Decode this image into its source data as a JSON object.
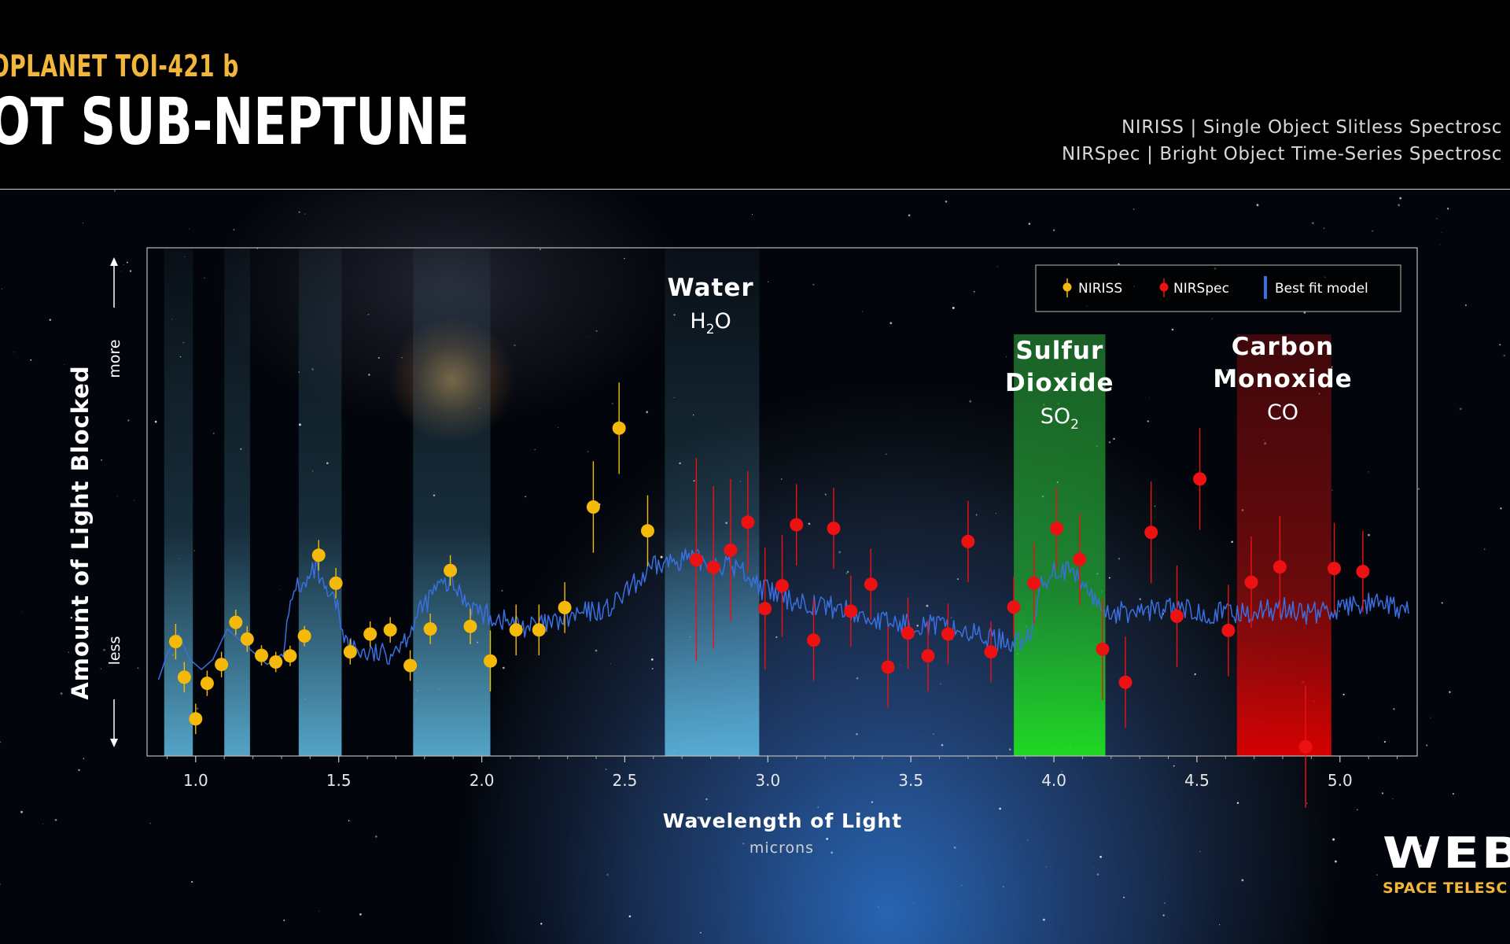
{
  "header": {
    "kicker": "OPLANET TOI-421 b",
    "title": "OT SUB-NEPTUNE",
    "instruments": [
      "NIRISS | Single Object Slitless Spectrosc",
      "NIRSpec | Bright Object Time-Series Spectrosc"
    ]
  },
  "logo": {
    "word": "WEB",
    "sub": "SPACE TELESC"
  },
  "chart_data": {
    "type": "scatter",
    "xlabel": "Wavelength of Light",
    "xunit": "microns",
    "ylabel": "Amount of Light Blocked",
    "ylabel_more": "more",
    "ylabel_less": "less",
    "xlim": [
      0.83,
      5.27
    ],
    "ylim": [
      0,
      1
    ],
    "x_ticks": [
      1.0,
      1.5,
      2.0,
      2.5,
      3.0,
      3.5,
      4.0,
      4.5,
      5.0
    ],
    "x_tick_labels": [
      "1.0",
      "1.5",
      "2.0",
      "2.5",
      "3.0",
      "3.5",
      "4.0",
      "4.5",
      "5.0"
    ],
    "grid": false,
    "legend": {
      "placement": "top-right",
      "entries": [
        {
          "label": "NIRISS",
          "color": "#f5b90a",
          "marker": "dot"
        },
        {
          "label": "NIRSpec",
          "color": "#ee1111",
          "marker": "dot"
        },
        {
          "label": "Best fit model",
          "color": "#3a6fe0",
          "marker": "line"
        }
      ]
    },
    "bands": [
      {
        "x0": 0.89,
        "x1": 0.99,
        "kind": "water"
      },
      {
        "x0": 1.1,
        "x1": 1.19,
        "kind": "water"
      },
      {
        "x0": 1.36,
        "x1": 1.51,
        "kind": "water"
      },
      {
        "x0": 1.76,
        "x1": 2.03,
        "kind": "water"
      },
      {
        "x0": 2.64,
        "x1": 2.97,
        "kind": "water"
      },
      {
        "x0": 3.86,
        "x1": 4.18,
        "kind": "sulfur"
      },
      {
        "x0": 4.64,
        "x1": 4.97,
        "kind": "carbon"
      }
    ],
    "molecule_labels": [
      {
        "x": 2.8,
        "name_lines": [
          "Water"
        ],
        "formula": "H",
        "formula_sub": "2",
        "formula_tail": "O"
      },
      {
        "x": 4.02,
        "name_lines": [
          "Sulfur",
          "Dioxide"
        ],
        "formula": "SO",
        "formula_sub": "2",
        "formula_tail": ""
      },
      {
        "x": 4.8,
        "name_lines": [
          "Carbon",
          "Monoxide"
        ],
        "formula": "CO",
        "formula_sub": "",
        "formula_tail": ""
      }
    ],
    "series": [
      {
        "name": "NIRISS",
        "color": "#f5b90a",
        "points": [
          {
            "x": 0.93,
            "y": 0.225,
            "err": 0.035
          },
          {
            "x": 0.96,
            "y": 0.155,
            "err": 0.03
          },
          {
            "x": 1.0,
            "y": 0.073,
            "err": 0.03
          },
          {
            "x": 1.04,
            "y": 0.143,
            "err": 0.025
          },
          {
            "x": 1.09,
            "y": 0.18,
            "err": 0.025
          },
          {
            "x": 1.14,
            "y": 0.263,
            "err": 0.025
          },
          {
            "x": 1.18,
            "y": 0.23,
            "err": 0.025
          },
          {
            "x": 1.23,
            "y": 0.198,
            "err": 0.02
          },
          {
            "x": 1.28,
            "y": 0.185,
            "err": 0.02
          },
          {
            "x": 1.33,
            "y": 0.197,
            "err": 0.02
          },
          {
            "x": 1.38,
            "y": 0.236,
            "err": 0.02
          },
          {
            "x": 1.43,
            "y": 0.395,
            "err": 0.03
          },
          {
            "x": 1.49,
            "y": 0.34,
            "err": 0.03
          },
          {
            "x": 1.54,
            "y": 0.205,
            "err": 0.025
          },
          {
            "x": 1.61,
            "y": 0.24,
            "err": 0.025
          },
          {
            "x": 1.68,
            "y": 0.248,
            "err": 0.025
          },
          {
            "x": 1.75,
            "y": 0.178,
            "err": 0.03
          },
          {
            "x": 1.82,
            "y": 0.25,
            "err": 0.03
          },
          {
            "x": 1.89,
            "y": 0.365,
            "err": 0.03
          },
          {
            "x": 1.96,
            "y": 0.255,
            "err": 0.035
          },
          {
            "x": 2.03,
            "y": 0.187,
            "err": 0.06
          },
          {
            "x": 2.12,
            "y": 0.248,
            "err": 0.05
          },
          {
            "x": 2.2,
            "y": 0.248,
            "err": 0.05
          },
          {
            "x": 2.29,
            "y": 0.292,
            "err": 0.05
          },
          {
            "x": 2.39,
            "y": 0.49,
            "err": 0.09
          },
          {
            "x": 2.48,
            "y": 0.645,
            "err": 0.09
          },
          {
            "x": 2.58,
            "y": 0.443,
            "err": 0.07
          }
        ]
      },
      {
        "name": "NIRSpec",
        "color": "#ee1111",
        "points": [
          {
            "x": 2.75,
            "y": 0.386,
            "err": 0.2
          },
          {
            "x": 2.81,
            "y": 0.371,
            "err": 0.16
          },
          {
            "x": 2.87,
            "y": 0.405,
            "err": 0.14
          },
          {
            "x": 2.93,
            "y": 0.46,
            "err": 0.1
          },
          {
            "x": 2.99,
            "y": 0.29,
            "err": 0.12
          },
          {
            "x": 3.05,
            "y": 0.335,
            "err": 0.1
          },
          {
            "x": 3.1,
            "y": 0.455,
            "err": 0.08
          },
          {
            "x": 3.16,
            "y": 0.228,
            "err": 0.08
          },
          {
            "x": 3.23,
            "y": 0.448,
            "err": 0.08
          },
          {
            "x": 3.29,
            "y": 0.285,
            "err": 0.07
          },
          {
            "x": 3.36,
            "y": 0.338,
            "err": 0.07
          },
          {
            "x": 3.42,
            "y": 0.175,
            "err": 0.08
          },
          {
            "x": 3.49,
            "y": 0.242,
            "err": 0.07
          },
          {
            "x": 3.56,
            "y": 0.197,
            "err": 0.07
          },
          {
            "x": 3.63,
            "y": 0.24,
            "err": 0.06
          },
          {
            "x": 3.7,
            "y": 0.422,
            "err": 0.08
          },
          {
            "x": 3.78,
            "y": 0.205,
            "err": 0.06
          },
          {
            "x": 3.86,
            "y": 0.293,
            "err": 0.06
          },
          {
            "x": 3.93,
            "y": 0.34,
            "err": 0.08
          },
          {
            "x": 4.01,
            "y": 0.448,
            "err": 0.08
          },
          {
            "x": 4.09,
            "y": 0.387,
            "err": 0.09
          },
          {
            "x": 4.17,
            "y": 0.21,
            "err": 0.1
          },
          {
            "x": 4.25,
            "y": 0.145,
            "err": 0.09
          },
          {
            "x": 4.34,
            "y": 0.44,
            "err": 0.1
          },
          {
            "x": 4.43,
            "y": 0.275,
            "err": 0.1
          },
          {
            "x": 4.51,
            "y": 0.545,
            "err": 0.1
          },
          {
            "x": 4.61,
            "y": 0.247,
            "err": 0.09
          },
          {
            "x": 4.69,
            "y": 0.342,
            "err": 0.09
          },
          {
            "x": 4.79,
            "y": 0.372,
            "err": 0.1
          },
          {
            "x": 4.88,
            "y": 0.018,
            "err": 0.12
          },
          {
            "x": 4.98,
            "y": 0.369,
            "err": 0.09
          },
          {
            "x": 5.08,
            "y": 0.363,
            "err": 0.08
          }
        ]
      },
      {
        "name": "Best fit model",
        "color": "#3a6fe0",
        "points": [
          {
            "x": 0.87,
            "y": 0.15
          },
          {
            "x": 0.9,
            "y": 0.2
          },
          {
            "x": 0.94,
            "y": 0.24
          },
          {
            "x": 0.98,
            "y": 0.19
          },
          {
            "x": 1.02,
            "y": 0.17
          },
          {
            "x": 1.06,
            "y": 0.19
          },
          {
            "x": 1.11,
            "y": 0.25
          },
          {
            "x": 1.15,
            "y": 0.23
          },
          {
            "x": 1.19,
            "y": 0.21
          },
          {
            "x": 1.25,
            "y": 0.18
          },
          {
            "x": 1.3,
            "y": 0.2
          },
          {
            "x": 1.35,
            "y": 0.34
          },
          {
            "x": 1.38,
            "y": 0.33
          },
          {
            "x": 1.42,
            "y": 0.37
          },
          {
            "x": 1.45,
            "y": 0.32
          },
          {
            "x": 1.49,
            "y": 0.3
          },
          {
            "x": 1.53,
            "y": 0.22
          },
          {
            "x": 1.6,
            "y": 0.2
          },
          {
            "x": 1.67,
            "y": 0.2
          },
          {
            "x": 1.73,
            "y": 0.23
          },
          {
            "x": 1.78,
            "y": 0.28
          },
          {
            "x": 1.84,
            "y": 0.33
          },
          {
            "x": 1.89,
            "y": 0.34
          },
          {
            "x": 1.94,
            "y": 0.31
          },
          {
            "x": 2.0,
            "y": 0.28
          },
          {
            "x": 2.06,
            "y": 0.27
          },
          {
            "x": 2.15,
            "y": 0.255
          },
          {
            "x": 2.25,
            "y": 0.26
          },
          {
            "x": 2.35,
            "y": 0.28
          },
          {
            "x": 2.45,
            "y": 0.29
          },
          {
            "x": 2.52,
            "y": 0.33
          },
          {
            "x": 2.6,
            "y": 0.37
          },
          {
            "x": 2.7,
            "y": 0.39
          },
          {
            "x": 2.8,
            "y": 0.38
          },
          {
            "x": 2.9,
            "y": 0.37
          },
          {
            "x": 2.98,
            "y": 0.33
          },
          {
            "x": 3.05,
            "y": 0.31
          },
          {
            "x": 3.15,
            "y": 0.3
          },
          {
            "x": 3.25,
            "y": 0.29
          },
          {
            "x": 3.35,
            "y": 0.27
          },
          {
            "x": 3.45,
            "y": 0.26
          },
          {
            "x": 3.55,
            "y": 0.26
          },
          {
            "x": 3.65,
            "y": 0.25
          },
          {
            "x": 3.75,
            "y": 0.235
          },
          {
            "x": 3.85,
            "y": 0.225
          },
          {
            "x": 3.92,
            "y": 0.23
          },
          {
            "x": 3.95,
            "y": 0.33
          },
          {
            "x": 4.0,
            "y": 0.37
          },
          {
            "x": 4.05,
            "y": 0.36
          },
          {
            "x": 4.1,
            "y": 0.34
          },
          {
            "x": 4.15,
            "y": 0.3
          },
          {
            "x": 4.2,
            "y": 0.28
          },
          {
            "x": 4.3,
            "y": 0.285
          },
          {
            "x": 4.4,
            "y": 0.29
          },
          {
            "x": 4.5,
            "y": 0.285
          },
          {
            "x": 4.6,
            "y": 0.28
          },
          {
            "x": 4.7,
            "y": 0.285
          },
          {
            "x": 4.8,
            "y": 0.29
          },
          {
            "x": 4.9,
            "y": 0.28
          },
          {
            "x": 5.0,
            "y": 0.29
          },
          {
            "x": 5.1,
            "y": 0.3
          },
          {
            "x": 5.2,
            "y": 0.29
          },
          {
            "x": 5.24,
            "y": 0.28
          }
        ]
      }
    ]
  }
}
